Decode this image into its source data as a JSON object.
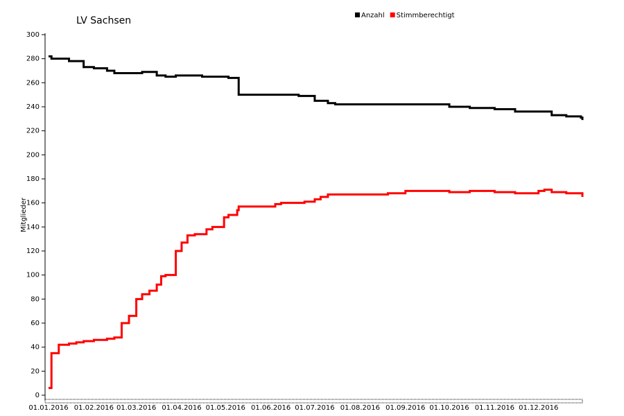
{
  "chart_data": {
    "type": "line",
    "title": "LV Sachsen",
    "y_label": "Mitglieder",
    "x": [
      "01.01.2016",
      "03.01.2016",
      "06.01.2016",
      "08.01.2016",
      "15.01.2016",
      "20.01.2016",
      "25.01.2016",
      "01.02.2016",
      "10.02.2016",
      "15.02.2016",
      "20.02.2016",
      "25.02.2016",
      "01.03.2016",
      "05.03.2016",
      "10.03.2016",
      "15.03.2016",
      "18.03.2016",
      "21.03.2016",
      "26.03.2016",
      "28.03.2016",
      "01.04.2016",
      "05.04.2016",
      "10.04.2016",
      "15.04.2016",
      "18.04.2016",
      "22.04.2016",
      "28.04.2016",
      "30.04.2016",
      "03.05.2016",
      "09.05.2016",
      "10.05.2016",
      "31.05.2016",
      "04.06.2016",
      "08.06.2016",
      "20.06.2016",
      "24.06.2016",
      "01.07.2016",
      "05.07.2016",
      "10.07.2016",
      "15.07.2016",
      "01.08.2016",
      "20.08.2016",
      "01.09.2016",
      "01.10.2016",
      "15.10.2016",
      "01.11.2016",
      "15.11.2016",
      "01.12.2016",
      "05.12.2016",
      "10.12.2016",
      "20.12.2016",
      "30.12.2016",
      "31.12.2016"
    ],
    "series": [
      {
        "name": "Anzahl",
        "color": "#000000",
        "values": [
          282,
          280,
          280,
          280,
          278,
          278,
          273,
          272,
          270,
          268,
          268,
          268,
          268,
          269,
          269,
          266,
          266,
          265,
          265,
          266,
          266,
          266,
          266,
          265,
          265,
          265,
          265,
          265,
          264,
          264,
          250,
          250,
          250,
          250,
          249,
          249,
          245,
          245,
          243,
          242,
          242,
          242,
          242,
          240,
          239,
          238,
          236,
          236,
          236,
          233,
          232,
          231,
          229
        ]
      },
      {
        "name": "Stimmberechtigt",
        "color": "#ff0000",
        "values": [
          6,
          35,
          35,
          42,
          43,
          44,
          45,
          46,
          47,
          48,
          60,
          66,
          80,
          84,
          87,
          92,
          99,
          100,
          100,
          120,
          127,
          133,
          134,
          134,
          138,
          140,
          140,
          148,
          150,
          154,
          157,
          157,
          159,
          160,
          160,
          161,
          163,
          165,
          167,
          167,
          167,
          168,
          170,
          169,
          170,
          169,
          168,
          170,
          171,
          169,
          168,
          168,
          165
        ]
      }
    ],
    "xlim": [
      "01.01.2016",
      "31.12.2016"
    ],
    "xticks": [
      "01.01.2016",
      "01.02.2016",
      "01.03.2016",
      "01.04.2016",
      "01.05.2016",
      "01.06.2016",
      "01.07.2016",
      "01.08.2016",
      "01.09.2016",
      "01.10.2016",
      "01.11.2016",
      "01.12.2016"
    ],
    "ylim": [
      0,
      300
    ],
    "yticks": [
      0,
      20,
      40,
      60,
      80,
      100,
      120,
      140,
      160,
      180,
      200,
      220,
      240,
      260,
      280,
      300
    ],
    "legend": "top"
  }
}
